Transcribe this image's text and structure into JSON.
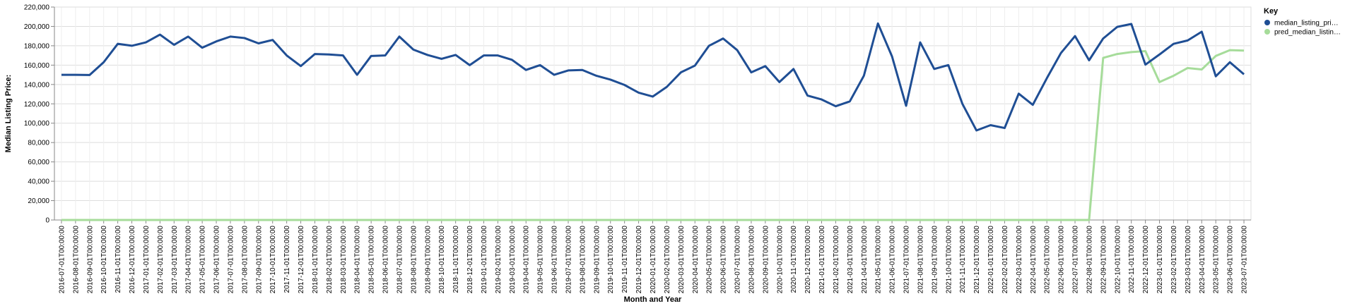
{
  "chart_data": {
    "type": "line",
    "xlabel": "Month and Year",
    "ylabel": "Median Listing Price:",
    "ylim": [
      0,
      220000
    ],
    "yticks": [
      "0",
      "20,000",
      "40,000",
      "60,000",
      "80,000",
      "100,000",
      "120,000",
      "140,000",
      "160,000",
      "180,000",
      "200,000",
      "220,000"
    ],
    "ytick_values": [
      0,
      20000,
      40000,
      60000,
      80000,
      100000,
      120000,
      140000,
      160000,
      180000,
      200000,
      220000
    ],
    "grid": true,
    "legend": {
      "title": "Key",
      "position": "top-right",
      "entries": [
        "median_listing_pri…",
        "pred_median_listin…"
      ]
    },
    "colors": {
      "actual": "#1f4e94",
      "predicted": "#a6dc9a"
    },
    "x": [
      "2016-07-01T00:00:00",
      "2016-08-01T00:00:00",
      "2016-09-01T00:00:00",
      "2016-10-01T00:00:00",
      "2016-11-01T00:00:00",
      "2016-12-01T00:00:00",
      "2017-01-01T00:00:00",
      "2017-02-01T00:00:00",
      "2017-03-01T00:00:00",
      "2017-04-01T00:00:00",
      "2017-05-01T00:00:00",
      "2017-06-01T00:00:00",
      "2017-07-01T00:00:00",
      "2017-08-01T00:00:00",
      "2017-09-01T00:00:00",
      "2017-10-01T00:00:00",
      "2017-11-01T00:00:00",
      "2017-12-01T00:00:00",
      "2018-01-01T00:00:00",
      "2018-02-01T00:00:00",
      "2018-03-01T00:00:00",
      "2018-04-01T00:00:00",
      "2018-05-01T00:00:00",
      "2018-06-01T00:00:00",
      "2018-07-01T00:00:00",
      "2018-08-01T00:00:00",
      "2018-09-01T00:00:00",
      "2018-10-01T00:00:00",
      "2018-11-01T00:00:00",
      "2018-12-01T00:00:00",
      "2019-01-01T00:00:00",
      "2019-02-01T00:00:00",
      "2019-03-01T00:00:00",
      "2019-04-01T00:00:00",
      "2019-05-01T00:00:00",
      "2019-06-01T00:00:00",
      "2019-07-01T00:00:00",
      "2019-08-01T00:00:00",
      "2019-09-01T00:00:00",
      "2019-10-01T00:00:00",
      "2019-11-01T00:00:00",
      "2019-12-01T00:00:00",
      "2020-01-01T00:00:00",
      "2020-02-01T00:00:00",
      "2020-03-01T00:00:00",
      "2020-04-01T00:00:00",
      "2020-05-01T00:00:00",
      "2020-06-01T00:00:00",
      "2020-07-01T00:00:00",
      "2020-08-01T00:00:00",
      "2020-09-01T00:00:00",
      "2020-10-01T00:00:00",
      "2020-11-01T00:00:00",
      "2020-12-01T00:00:00",
      "2021-01-01T00:00:00",
      "2021-02-01T00:00:00",
      "2021-03-01T00:00:00",
      "2021-04-01T00:00:00",
      "2021-05-01T00:00:00",
      "2021-06-01T00:00:00",
      "2021-07-01T00:00:00",
      "2021-08-01T00:00:00",
      "2021-09-01T00:00:00",
      "2021-10-01T00:00:00",
      "2021-11-01T00:00:00",
      "2021-12-01T00:00:00",
      "2022-01-01T00:00:00",
      "2022-02-01T00:00:00",
      "2022-03-01T00:00:00",
      "2022-04-01T00:00:00",
      "2022-05-01T00:00:00",
      "2022-06-01T00:00:00",
      "2022-07-01T00:00:00",
      "2022-08-01T00:00:00",
      "2022-09-01T00:00:00",
      "2022-10-01T00:00:00",
      "2022-11-01T00:00:00",
      "2022-12-01T00:00:00",
      "2023-01-01T00:00:00",
      "2023-02-01T00:00:00",
      "2023-03-01T00:00:00",
      "2023-04-01T00:00:00",
      "2023-05-01T00:00:00",
      "2023-06-01T00:00:00",
      "2023-07-01T00:00:00"
    ],
    "series": [
      {
        "name": "median_listing_pri…",
        "values": [
          150000,
          150000,
          149800,
          163000,
          182000,
          180000,
          183500,
          191500,
          181000,
          189500,
          178000,
          184500,
          189500,
          188000,
          182500,
          186000,
          170000,
          159000,
          171500,
          171000,
          170000,
          150000,
          169500,
          170000,
          189500,
          176000,
          170500,
          166500,
          170500,
          160000,
          170000,
          170000,
          165500,
          155000,
          160000,
          150000,
          154500,
          155000,
          149000,
          145000,
          139500,
          131500,
          127500,
          137500,
          152500,
          159500,
          180000,
          187500,
          175500,
          152500,
          159000,
          142500,
          156000,
          128500,
          124500,
          117500,
          122500,
          149000,
          203000,
          169000,
          118000,
          183500,
          156000,
          160000,
          120000,
          92500,
          98000,
          95000,
          130500,
          119000,
          146500,
          172500,
          190000,
          165000,
          187500,
          199500,
          202500,
          160500,
          171000,
          182000,
          185500,
          194500,
          148500,
          163000,
          150500
        ]
      },
      {
        "name": "pred_median_listin…",
        "values": [
          0,
          0,
          0,
          0,
          0,
          0,
          0,
          0,
          0,
          0,
          0,
          0,
          0,
          0,
          0,
          0,
          0,
          0,
          0,
          0,
          0,
          0,
          0,
          0,
          0,
          0,
          0,
          0,
          0,
          0,
          0,
          0,
          0,
          0,
          0,
          0,
          0,
          0,
          0,
          0,
          0,
          0,
          0,
          0,
          0,
          0,
          0,
          0,
          0,
          0,
          0,
          0,
          0,
          0,
          0,
          0,
          0,
          0,
          0,
          0,
          0,
          0,
          0,
          0,
          0,
          0,
          0,
          0,
          0,
          0,
          0,
          0,
          0,
          0,
          167500,
          171500,
          173500,
          174500,
          142500,
          149000,
          157000,
          155500,
          169500,
          175500,
          175000
        ]
      }
    ]
  }
}
